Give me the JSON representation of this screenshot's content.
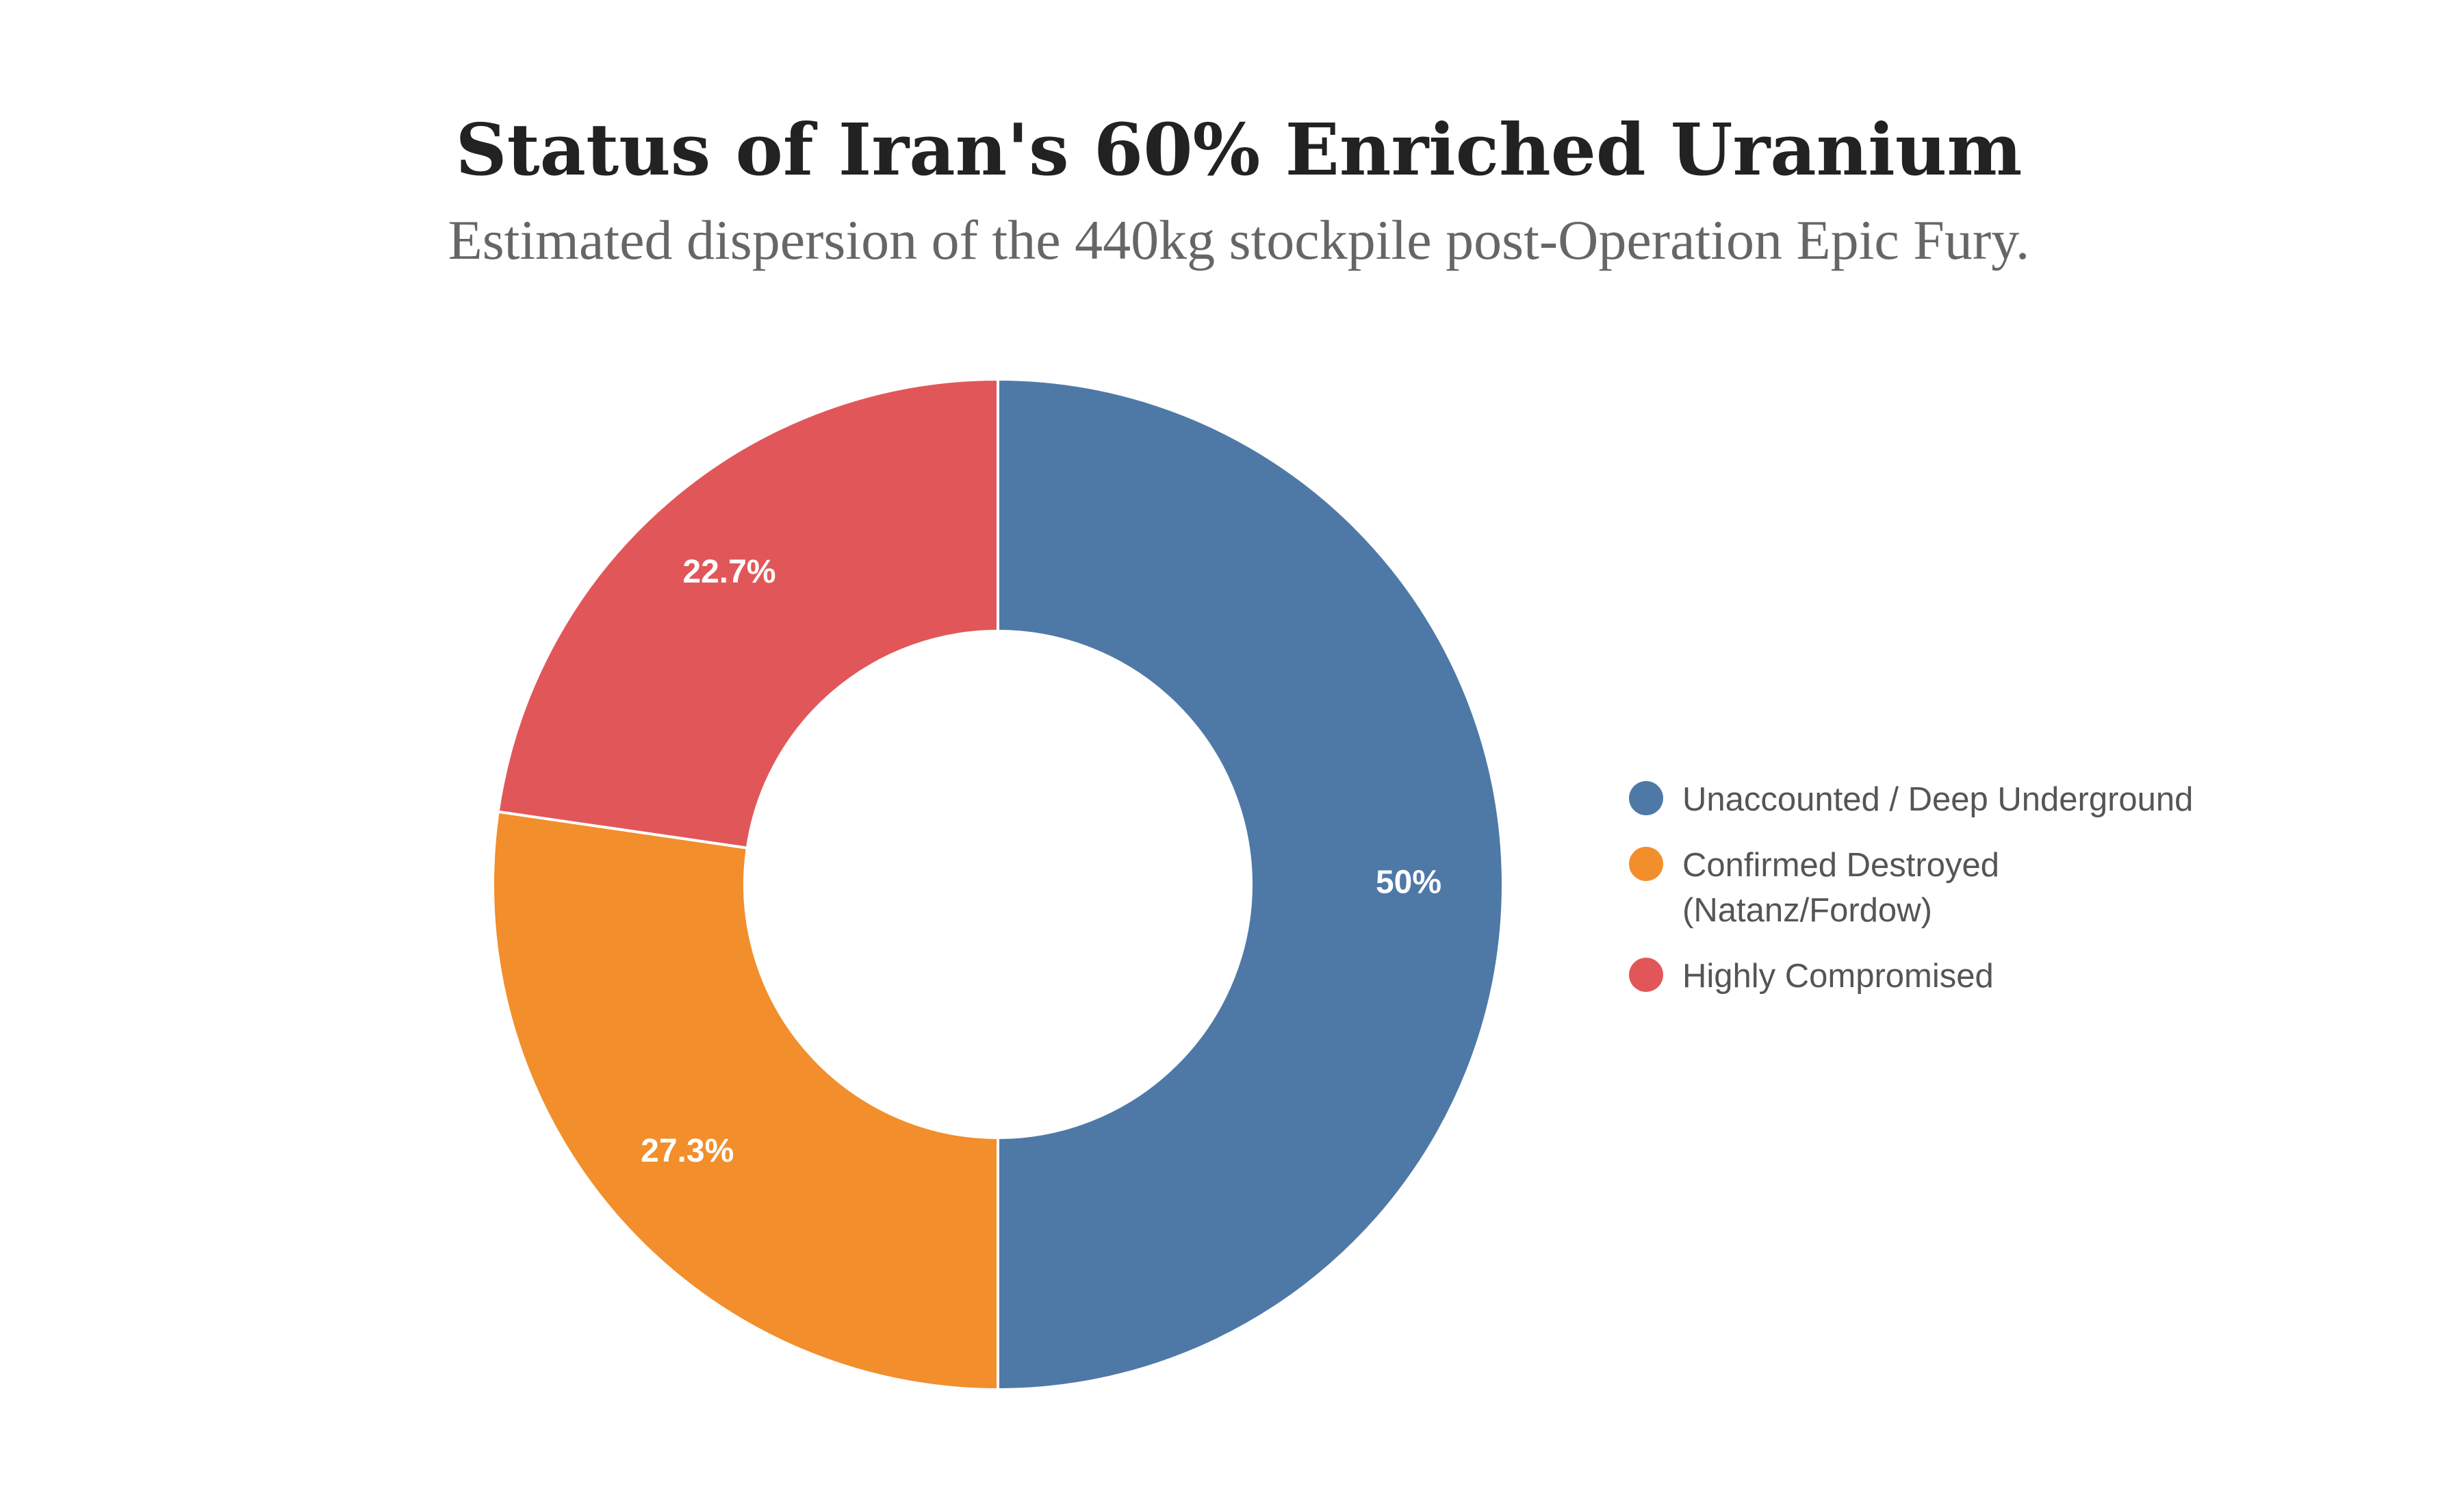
{
  "chart_data": {
    "type": "donut",
    "title": "Status of Iran's 60% Enriched Uranium",
    "subtitle": "Estimated dispersion of the 440kg stockpile post-Operation Epic Fury.",
    "categories": [
      "Unaccounted / Deep Underground",
      "Confirmed Destroyed (Natanz/Fordow)",
      "Highly Compromised"
    ],
    "values": [
      50,
      27.3,
      22.7
    ],
    "value_labels": [
      "50%",
      "27.3%",
      "22.7%"
    ],
    "colors": [
      "#4e79a7",
      "#f28e2b",
      "#e15759"
    ],
    "legend": "right"
  }
}
